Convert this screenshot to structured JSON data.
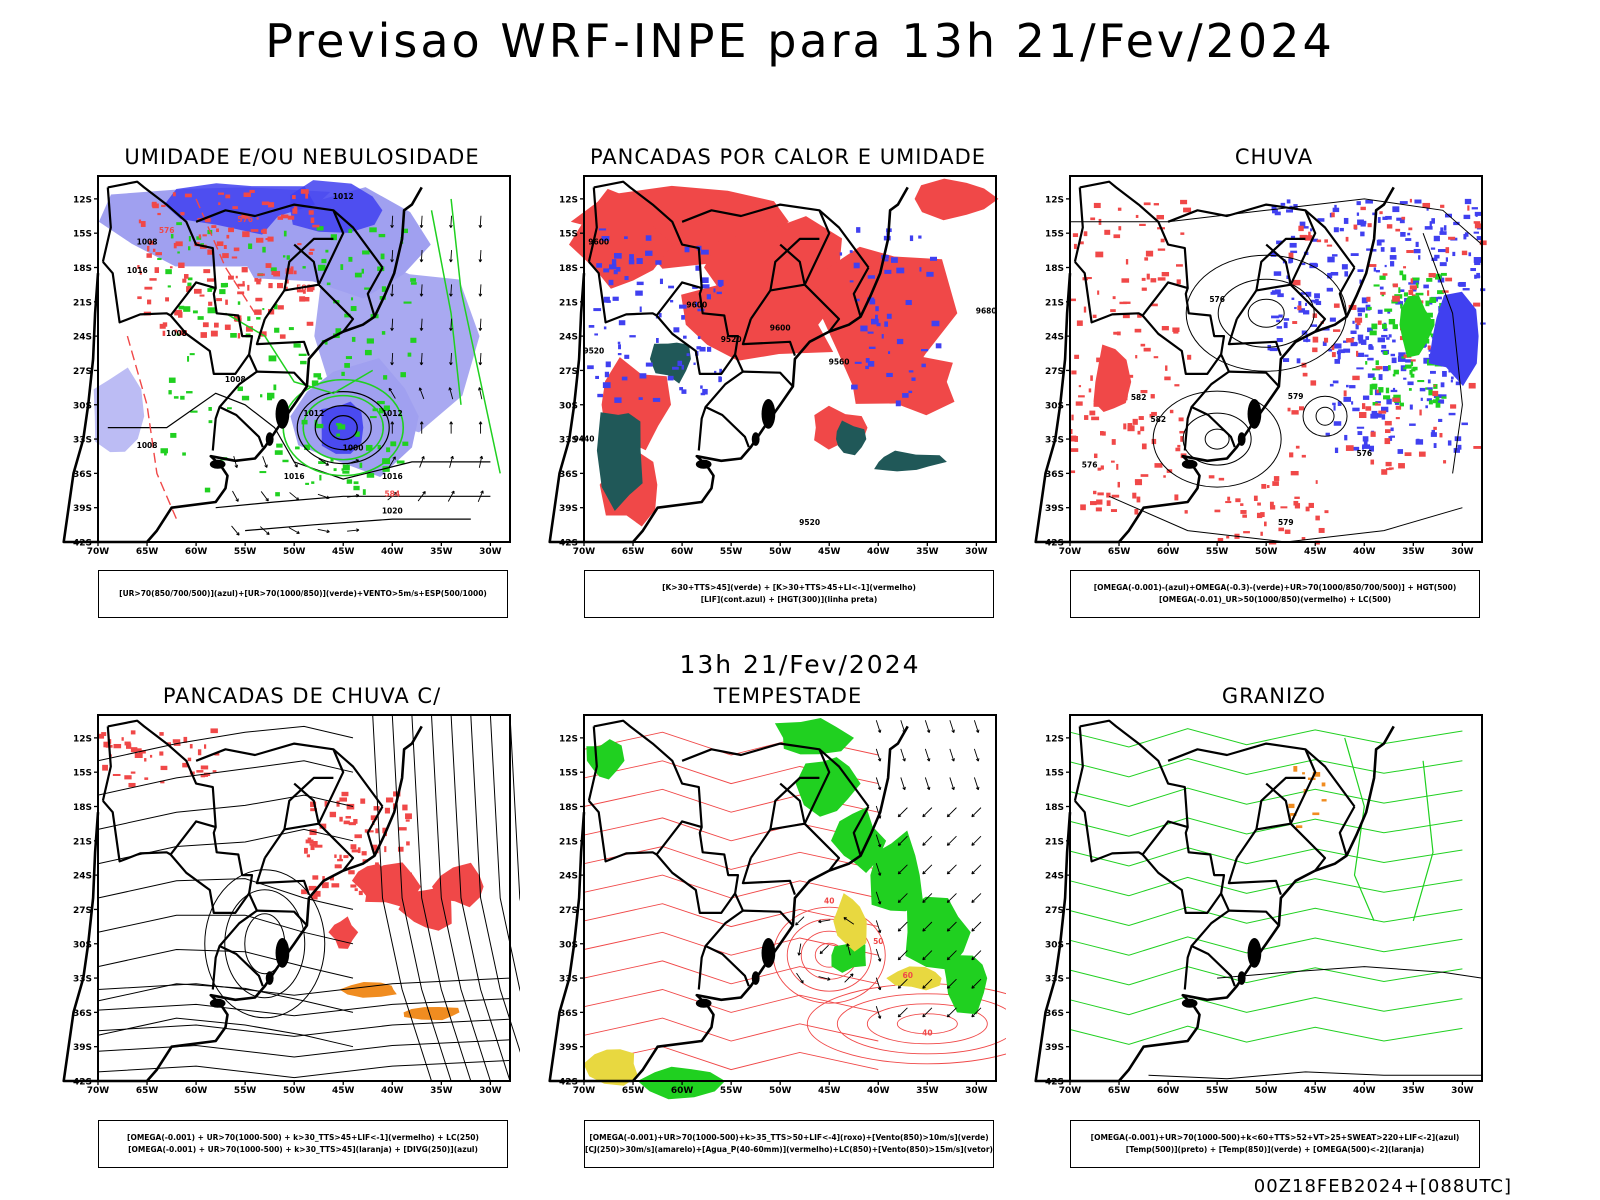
{
  "header": {
    "title": "Previsao WRF-INPE  para 13h 21/Fev/2024",
    "mid_stamp": "13h 21/Fev/2024",
    "footer": "00Z18FEB2024+[088UTC]"
  },
  "axes": {
    "lon_ticks": [
      "70W",
      "65W",
      "60W",
      "55W",
      "50W",
      "45W",
      "40W",
      "35W",
      "30W"
    ],
    "lat_ticks": [
      "12S",
      "15S",
      "18S",
      "21S",
      "24S",
      "27S",
      "30S",
      "33S",
      "36S",
      "39S",
      "42S"
    ]
  },
  "colors": {
    "red": "#f04848",
    "blue": "#4040f0",
    "green": "#20d020",
    "lavender": "#a0a0f0",
    "teal": "#205858",
    "orange": "#f08c20",
    "yellow": "#e8d840"
  },
  "panels": [
    {
      "title": "UMIDADE E/OU NEBULOSIDADE",
      "legend": [
        "[UR>70(850/700/500)](azul)+[UR>70(1000/850)](verde)+VENTO>5m/s+ESP(500/1000)"
      ],
      "labels": [
        "1012",
        "1008",
        "1016",
        "1008",
        "1008",
        "1012",
        "1016",
        "1008",
        "1016",
        "1020",
        "1012",
        "1000",
        "576",
        "576",
        "582",
        "584"
      ]
    },
    {
      "title": "PANCADAS POR CALOR E UMIDADE",
      "legend": [
        "[K>30+TTS>45](verde) + [K>30+TTS>45+LI<-1](vermelho)",
        "[LIF](cont.azul) + [HGT(300)](linha preta)"
      ],
      "labels": [
        "9600",
        "9600",
        "9520",
        "9520",
        "9440",
        "9600",
        "9680",
        "9520",
        "9560"
      ]
    },
    {
      "title": "CHUVA",
      "legend": [
        "[OMEGA(-0.001)-(azul)+OMEGA(-0.3)-(verde)+UR>70(1000/850/700/500)] + HGT(500)",
        "[OMEGA(-0.01)_UR>50(1000/850)(vermelho) + LC(500)"
      ],
      "labels": [
        "576",
        "579",
        "582",
        "576",
        "579",
        "576",
        "582"
      ]
    },
    {
      "title": "PANCADAS DE CHUVA C/ TROVOADAS",
      "legend": [
        "[OMEGA(-0.001) + UR>70(1000-500) + k>30_TTS>45+LIF<-1](vermelho) + LC(250)",
        "[OMEGA(-0.001) + UR>70(1000-500) + k>30_TTS>45](laranja) + [DIVG(250)](azul)"
      ],
      "labels": []
    },
    {
      "title": "TEMPESTADE",
      "legend": [
        "[OMEGA(-0.001)+UR>70(1000-500)+k>35_TTS>50+LIF<-4](roxo)+[Vento(850)>10m/s](verde)",
        "[CJ(250)>30m/s](amarelo)+[Agua_P(40-60mm)](vermelho)+LC(850)+[Vento(850)>15m/s](vetor)"
      ],
      "labels": [
        "40",
        "50",
        "60",
        "40"
      ]
    },
    {
      "title": "GRANIZO",
      "legend": [
        "[OMEGA(-0.001)+UR>70(1000-500)+k<60+TTS>52+VT>25+SWEAT>220+LIF<-2](azul)",
        "[Temp(500)](preto) + [Temp(850)](verde) + [OMEGA(500)<-2](laranja)"
      ],
      "labels": []
    }
  ],
  "chart_data": [
    {
      "type": "heatmap",
      "title": "UMIDADE E/OU NEBULOSIDADE",
      "x_range": [
        -70,
        -28
      ],
      "y_range": [
        -42,
        -10
      ],
      "fields": [
        {
          "name": "UR>70(850/700/500)",
          "color": "#4040f0",
          "regions": [
            [
              -70,
              -12,
              -42,
              -17
            ],
            [
              -55,
              -17,
              -38,
              -23
            ],
            [
              -46,
              -28,
              -36,
              -36
            ]
          ]
        },
        {
          "name": "UR>70(1000/850)",
          "color": "#20d020",
          "regions": [
            [
              -62,
              -20,
              -47,
              -30
            ],
            [
              -50,
              -28,
              -40,
              -37
            ]
          ]
        },
        {
          "name": "Cyclone center",
          "color": "#000000",
          "point": [
            -45,
            -32
          ]
        }
      ],
      "contours_hPa": [
        1000,
        1008,
        1012,
        1016,
        1020
      ]
    },
    {
      "type": "heatmap",
      "title": "PANCADAS POR CALOR E UMIDADE",
      "x_range": [
        -70,
        -28
      ],
      "y_range": [
        -42,
        -10
      ],
      "fields": [
        {
          "name": "K>30+TTS>45+LI<-1",
          "color": "#f04848",
          "regions": [
            [
              -70,
              -10,
              -38,
              -20
            ],
            [
              -58,
              -19,
              -36,
              -27
            ],
            [
              -46,
              -18,
              -28,
              -32
            ]
          ]
        },
        {
          "name": "K>30+TTS>45",
          "color": "#205858",
          "regions": [
            [
              -68,
              -30,
              -62,
              -42
            ],
            [
              -42,
              -32,
              -32,
              -36
            ]
          ]
        }
      ],
      "contours_m": [
        9440,
        9520,
        9560,
        9600,
        9680
      ]
    },
    {
      "type": "heatmap",
      "title": "CHUVA",
      "x_range": [
        -70,
        -28
      ],
      "y_range": [
        -42,
        -10
      ],
      "fields": [
        {
          "name": "OMEGA(-0.001)+UR>70",
          "color": "#4040f0",
          "regions": [
            [
              -50,
              -12,
              -28,
              -25
            ],
            [
              -48,
              -25,
              -32,
              -33
            ]
          ]
        },
        {
          "name": "OMEGA(-0.3)",
          "color": "#20d020",
          "regions": [
            [
              -40,
              -20,
              -32,
              -30
            ]
          ]
        },
        {
          "name": "OMEGA(-0.01)_UR>50",
          "color": "#f04848",
          "regions": [
            [
              -70,
              -12,
              -58,
              -40
            ],
            [
              -40,
              -30,
              -28,
              -36
            ]
          ]
        }
      ],
      "contours_dam": [
        576,
        579,
        582
      ]
    },
    {
      "type": "heatmap",
      "title": "PANCADAS DE CHUVA C/ TROVOADAS",
      "x_range": [
        -70,
        -28
      ],
      "y_range": [
        -42,
        -10
      ],
      "fields": [
        {
          "name": "k>30_TTS>45+LIF<-1",
          "color": "#f04848",
          "regions": [
            [
              -46,
              -18,
              -32,
              -30
            ],
            [
              -44,
              -29,
              -36,
              -34
            ]
          ]
        },
        {
          "name": "k>30_TTS>45",
          "color": "#f08c20",
          "regions": [
            [
              -44,
              -33,
              -32,
              -36
            ]
          ]
        }
      ]
    },
    {
      "type": "heatmap",
      "title": "TEMPESTADE",
      "x_range": [
        -70,
        -28
      ],
      "y_range": [
        -42,
        -10
      ],
      "fields": [
        {
          "name": "Vento(850)>10m/s",
          "color": "#20d020",
          "regions": [
            [
              -52,
              -10,
              -44,
              -28
            ],
            [
              -41,
              -20,
              -30,
              -35
            ]
          ]
        },
        {
          "name": "CJ(250)>30m/s",
          "color": "#e8d840",
          "regions": [
            [
              -46,
              -27,
              -40,
              -33
            ],
            [
              -70,
              -39,
              -64,
              -42
            ]
          ]
        }
      ],
      "contours_mm": [
        40,
        50,
        60
      ]
    },
    {
      "type": "heatmap",
      "title": "GRANIZO",
      "x_range": [
        -70,
        -28
      ],
      "y_range": [
        -42,
        -10
      ],
      "fields": [
        {
          "name": "Temp(850)",
          "color": "#20d020",
          "regions": [
            [
              -70,
              -10,
              -28,
              -42
            ]
          ]
        },
        {
          "name": "OMEGA(500)<-2",
          "color": "#f08c20",
          "regions": [
            [
              -48,
              -12,
              -44,
              -20
            ]
          ]
        }
      ]
    }
  ]
}
